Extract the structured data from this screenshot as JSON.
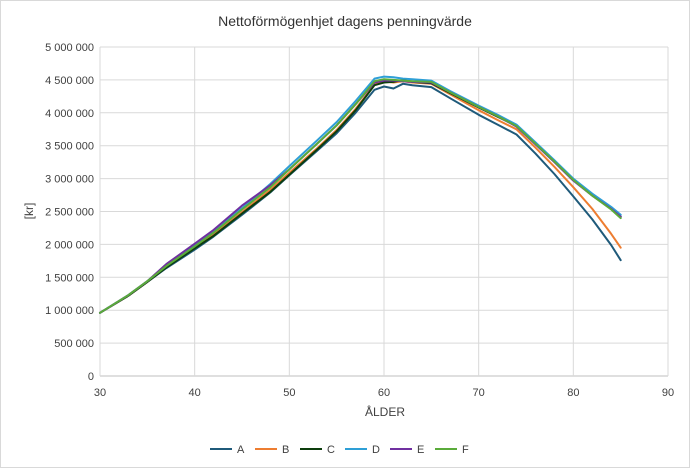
{
  "chart_data": {
    "type": "line",
    "title": "Nettoförmögenhjet dagens penningvärde",
    "xlabel": "ÅLDER",
    "ylabel": "[kr]",
    "xlim": [
      30,
      90
    ],
    "ylim": [
      0,
      5000000
    ],
    "x_ticks": [
      30,
      40,
      50,
      60,
      70,
      80,
      90
    ],
    "x_tick_labels": [
      "30",
      "40",
      "50",
      "60",
      "70",
      "80",
      "90"
    ],
    "y_ticks": [
      0,
      500000,
      1000000,
      1500000,
      2000000,
      2500000,
      3000000,
      3500000,
      4000000,
      4500000,
      5000000
    ],
    "y_tick_labels": [
      "0",
      "500 000",
      "1 000 000",
      "1 500 000",
      "2 000 000",
      "2 500 000",
      "3 000 000",
      "3 500 000",
      "4 000 000",
      "4 500 000",
      "5 000 000"
    ],
    "grid": true,
    "legend_position": "bottom",
    "series": [
      {
        "name": "A",
        "color": "#1f5a7a",
        "x": [
          30,
          33,
          35,
          37,
          40,
          42,
          45,
          48,
          50,
          53,
          55,
          57,
          59,
          60,
          61,
          62,
          63,
          65,
          67,
          70,
          72,
          74,
          76,
          78,
          80,
          82,
          84,
          85
        ],
        "y": [
          960000,
          1220000,
          1430000,
          1640000,
          1920000,
          2120000,
          2450000,
          2790000,
          3050000,
          3430000,
          3690000,
          4000000,
          4350000,
          4400000,
          4370000,
          4440000,
          4420000,
          4390000,
          4220000,
          3970000,
          3820000,
          3670000,
          3380000,
          3070000,
          2730000,
          2380000,
          1990000,
          1760000
        ]
      },
      {
        "name": "B",
        "color": "#ed7d31",
        "x": [
          30,
          33,
          35,
          37,
          40,
          42,
          45,
          48,
          50,
          53,
          55,
          57,
          59,
          60,
          61,
          62,
          63,
          65,
          67,
          70,
          72,
          74,
          76,
          78,
          80,
          82,
          84,
          85
        ],
        "y": [
          960000,
          1220000,
          1430000,
          1660000,
          1950000,
          2150000,
          2490000,
          2830000,
          3090000,
          3470000,
          3740000,
          4060000,
          4430000,
          4480000,
          4460000,
          4480000,
          4460000,
          4440000,
          4280000,
          4040000,
          3890000,
          3750000,
          3470000,
          3180000,
          2870000,
          2540000,
          2160000,
          1950000
        ]
      },
      {
        "name": "C",
        "color": "#0d3d0d",
        "x": [
          30,
          33,
          35,
          37,
          40,
          42,
          45,
          48,
          50,
          53,
          55,
          57,
          59,
          60,
          61,
          62,
          63,
          65,
          67,
          70,
          72,
          74,
          76,
          78,
          80,
          82,
          84,
          85
        ],
        "y": [
          960000,
          1220000,
          1430000,
          1650000,
          1940000,
          2130000,
          2470000,
          2800000,
          3060000,
          3450000,
          3720000,
          4040000,
          4420000,
          4460000,
          4470000,
          4500000,
          4470000,
          4450000,
          4300000,
          4080000,
          3940000,
          3800000,
          3530000,
          3260000,
          2980000,
          2750000,
          2550000,
          2420000
        ]
      },
      {
        "name": "D",
        "color": "#2e9fd6",
        "x": [
          30,
          33,
          35,
          37,
          40,
          42,
          45,
          48,
          50,
          53,
          55,
          57,
          59,
          60,
          61,
          62,
          63,
          65,
          67,
          70,
          72,
          74,
          76,
          78,
          80,
          82,
          84,
          85
        ],
        "y": [
          960000,
          1230000,
          1440000,
          1680000,
          1990000,
          2200000,
          2550000,
          2920000,
          3190000,
          3590000,
          3860000,
          4180000,
          4520000,
          4550000,
          4540000,
          4520000,
          4510000,
          4490000,
          4330000,
          4110000,
          3970000,
          3820000,
          3550000,
          3280000,
          3000000,
          2770000,
          2570000,
          2450000
        ]
      },
      {
        "name": "E",
        "color": "#7030a0",
        "x": [
          30,
          33,
          35,
          37,
          40,
          42,
          45,
          48,
          50,
          53,
          55,
          57,
          59,
          60,
          61,
          62,
          63,
          65,
          67,
          70,
          72,
          74,
          76,
          78,
          80,
          82,
          84,
          85
        ],
        "y": [
          960000,
          1230000,
          1440000,
          1700000,
          2010000,
          2220000,
          2590000,
          2900000,
          3140000,
          3540000,
          3810000,
          4130000,
          4460000,
          4490000,
          4490000,
          4480000,
          4470000,
          4460000,
          4310000,
          4090000,
          3950000,
          3790000,
          3520000,
          3250000,
          2970000,
          2740000,
          2540000,
          2420000
        ]
      },
      {
        "name": "F",
        "color": "#5aab3a",
        "x": [
          30,
          33,
          35,
          37,
          40,
          42,
          45,
          48,
          50,
          53,
          55,
          57,
          59,
          60,
          61,
          62,
          63,
          65,
          67,
          70,
          72,
          74,
          76,
          78,
          80,
          82,
          84,
          85
        ],
        "y": [
          960000,
          1230000,
          1440000,
          1670000,
          1970000,
          2180000,
          2530000,
          2870000,
          3140000,
          3540000,
          3810000,
          4130000,
          4480000,
          4510000,
          4500000,
          4490000,
          4480000,
          4470000,
          4310000,
          4090000,
          3950000,
          3800000,
          3530000,
          3260000,
          2980000,
          2740000,
          2530000,
          2400000
        ]
      }
    ]
  }
}
